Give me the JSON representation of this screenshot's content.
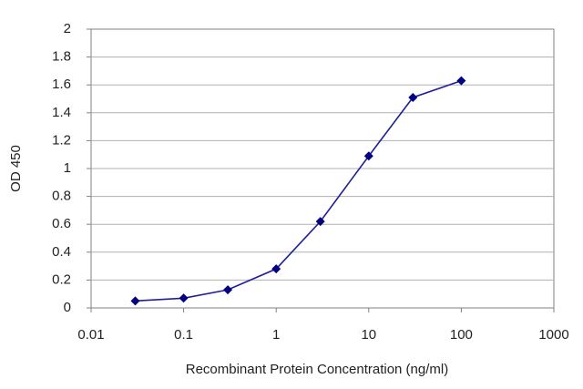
{
  "chart_data": {
    "type": "line",
    "x_label": "Recombinant Protein Concentration (ng/ml)",
    "y_label": "OD 450",
    "x": [
      0.03,
      0.1,
      0.3,
      1,
      3,
      10,
      30,
      100
    ],
    "series": [
      {
        "color": "#1f1f99",
        "values": [
          0.05,
          0.07,
          0.13,
          0.28,
          0.62,
          1.09,
          1.51,
          1.63
        ]
      }
    ],
    "xscale": "log",
    "xlim": [
      0.01,
      1000
    ],
    "xticks": [
      0.01,
      0.1,
      1,
      10,
      100,
      1000
    ],
    "ylim": [
      0,
      2
    ],
    "yticks": [
      0,
      0.2,
      0.4,
      0.6,
      0.8,
      1,
      1.2,
      1.4,
      1.6,
      1.8,
      2
    ],
    "grid": true
  }
}
